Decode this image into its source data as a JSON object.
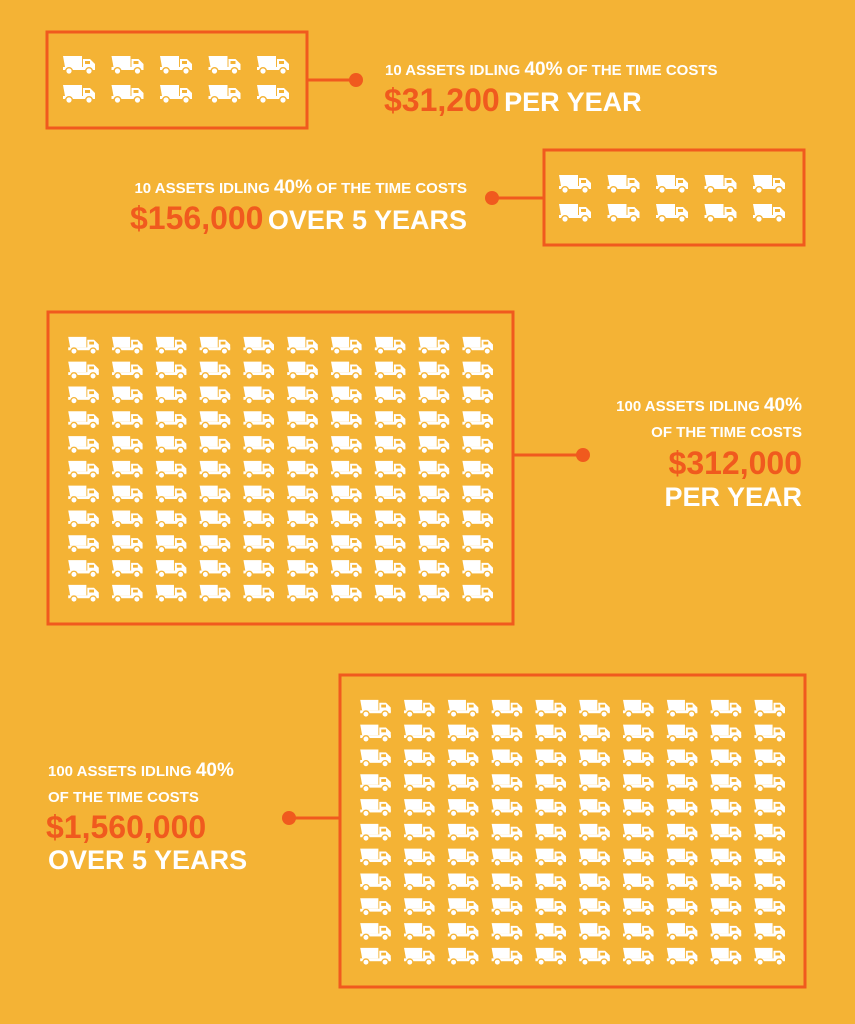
{
  "panels": [
    {
      "lead": "10 ASSETS IDLING",
      "percent": "40%",
      "lead_end": "OF THE TIME COSTS",
      "amount": "$31,200",
      "period": "PER YEAR"
    },
    {
      "lead": "10 ASSETS IDLING",
      "percent": "40%",
      "lead_end": "OF THE TIME COSTS",
      "amount": "$156,000",
      "period": "OVER 5 YEARS"
    },
    {
      "lead": "100 ASSETS IDLING",
      "percent": "40%",
      "lead_end": "OF THE TIME COSTS",
      "amount": "$312,000",
      "period": "PER YEAR"
    },
    {
      "lead": "100 ASSETS IDLING",
      "percent": "40%",
      "lead_end": "OF THE TIME COSTS",
      "amount": "$1,560,000",
      "period": "OVER 5 YEARS"
    }
  ]
}
